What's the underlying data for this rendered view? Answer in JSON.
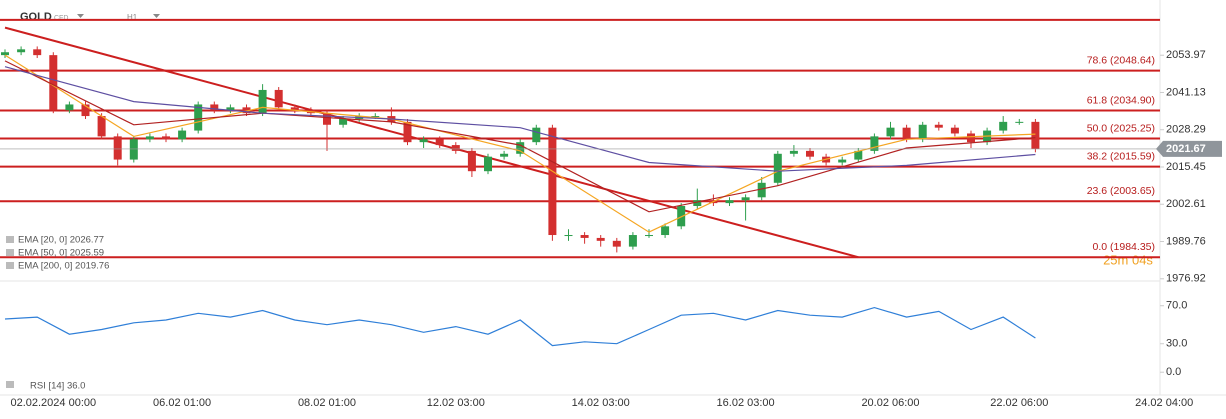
{
  "header": {
    "symbol": "GOLD",
    "kind": "CFD",
    "timeframe": "H1",
    "countdown": "25m 04s"
  },
  "chart_data": [
    {
      "type": "candlestick",
      "categories": [
        null,
        null,
        null,
        "02.02.2024  00:00",
        null,
        null,
        null,
        null,
        null,
        null,
        null,
        "06.02  01:00",
        null,
        null,
        null,
        null,
        null,
        null,
        null,
        null,
        "08.02  01:00",
        null,
        null,
        null,
        null,
        null,
        null,
        null,
        "12.02  03:00",
        null,
        null,
        null,
        null,
        null,
        null,
        null,
        null,
        "14.02  03:00",
        null,
        null,
        null,
        null,
        null,
        null,
        null,
        null,
        "16.02  03:00",
        null,
        null,
        null,
        null,
        null,
        null,
        null,
        null,
        "20.02  06:00",
        null,
        null,
        null,
        null,
        null,
        null,
        null,
        "22.02  06:00",
        null,
        null,
        null,
        null,
        null,
        null,
        null,
        null,
        "24.02  04:00"
      ],
      "open": [
        2054,
        2055,
        2056,
        2054,
        2035,
        2037,
        2033,
        2026,
        2018,
        2025,
        2026,
        2025,
        2028,
        2037,
        2035,
        2036,
        2034,
        2042,
        2036,
        2035,
        2034,
        2030,
        2032,
        2033,
        2033,
        2031,
        2024,
        2025,
        2023,
        2021,
        2014,
        2019,
        2020,
        2024,
        2029,
        1992,
        1992,
        1991,
        1990,
        1988,
        1992,
        1992,
        1995,
        2002,
        2004,
        2003,
        2004,
        2005,
        2010,
        2020,
        2021,
        2019,
        2017,
        2018,
        2021,
        2026,
        2029,
        2025,
        2030,
        2029,
        2027,
        2024,
        2028,
        2031,
        2031,
        null,
        null,
        null,
        null,
        null,
        null,
        null,
        null
      ],
      "high": [
        2056,
        2057,
        2057,
        2055,
        2038,
        2038,
        2034,
        2027,
        2026,
        2027,
        2027,
        2029,
        2038,
        2038,
        2037,
        2037,
        2044,
        2043,
        2037,
        2036,
        2035,
        2033,
        2034,
        2034,
        2036,
        2032,
        2026,
        2026,
        2024,
        2022,
        2020,
        2021,
        2025,
        2030,
        2030,
        1994,
        1993,
        1992,
        1991,
        1993,
        1994,
        1996,
        2003,
        2008,
        2006,
        2005,
        2006,
        2012,
        2021,
        2023,
        2022,
        2020,
        2019,
        2022,
        2027,
        2031,
        2030,
        2031,
        2031,
        2030,
        2028,
        2029,
        2033,
        2032,
        2032,
        null,
        null,
        null,
        null,
        null,
        null,
        null,
        null
      ],
      "low": [
        2053,
        2054,
        2053,
        2034,
        2034,
        2032,
        2025,
        2016,
        2017,
        2024,
        2024,
        2024,
        2027,
        2034,
        2034,
        2033,
        2033,
        2035,
        2034,
        2033,
        2021,
        2029,
        2031,
        2032,
        2030,
        2023,
        2022,
        2022,
        2020,
        2012,
        2013,
        2018,
        2019,
        2023,
        1990,
        1990,
        1989,
        1988,
        1986,
        1987,
        1991,
        1991,
        1994,
        2001,
        2002,
        2002,
        1997,
        2004,
        2009,
        2019,
        2018,
        2016,
        2016,
        2017,
        2020,
        2025,
        2024,
        2024,
        2028,
        2026,
        2022,
        2023,
        2027,
        2030,
        2020.5,
        null,
        null,
        null,
        null,
        null,
        null,
        null,
        null
      ],
      "close": [
        2055,
        2056,
        2054,
        2035,
        2037,
        2033,
        2026,
        2018,
        2025,
        2026,
        2025,
        2028,
        2037,
        2035,
        2036,
        2034,
        2042,
        2036,
        2035,
        2034,
        2030,
        2032,
        2033,
        2033,
        2031,
        2024,
        2025,
        2023,
        2021,
        2014,
        2019,
        2020,
        2024,
        2029,
        1992,
        1992,
        1991,
        1990,
        1988,
        1992,
        1992,
        1995,
        2002,
        2004,
        2003,
        2004,
        2005,
        2010,
        2020,
        2021,
        2019,
        2017,
        2018,
        2021,
        2026,
        2029,
        2025,
        2030,
        2029,
        2027,
        2024,
        2028,
        2031,
        2031,
        2021.67,
        null,
        null,
        null,
        null,
        null,
        null,
        null,
        null
      ],
      "up_color": "#2e9e4d",
      "down_color": "#d32f2f",
      "ylim": [
        1976.5,
        2073
      ],
      "yticks": [
        2053.97,
        2041.13,
        2028.29,
        2015.45,
        2002.61,
        1989.76,
        1976.92
      ],
      "last_price": 2021.67,
      "lines": [
        {
          "name": "EMA [20, 0]",
          "legend": "EMA [20, 0] 2026.77",
          "color": "#f5a623",
          "x": [
            0,
            8,
            16,
            24,
            32,
            40,
            48,
            56,
            64
          ],
          "values": [
            2054,
            2026,
            2036,
            2032,
            2021,
            1993,
            2014,
            2025,
            2026.77
          ]
        },
        {
          "name": "EMA [50, 0]",
          "legend": "EMA [50, 0] 2025.59",
          "color": "#b22222",
          "x": [
            0,
            8,
            16,
            24,
            32,
            40,
            48,
            56,
            64
          ],
          "values": [
            2052,
            2030,
            2034,
            2031,
            2023,
            2000,
            2009,
            2022,
            2025.59
          ]
        },
        {
          "name": "EMA [200, 0]",
          "legend": "EMA [200, 0] 2019.76",
          "color": "#5e4fa2",
          "x": [
            0,
            8,
            16,
            24,
            32,
            40,
            48,
            56,
            64
          ],
          "values": [
            2050,
            2038,
            2034,
            2032,
            2029,
            2017,
            2014,
            2016,
            2019.76
          ]
        }
      ],
      "trendline": {
        "color": "#cc1f1f",
        "x": [
          0,
          53
        ],
        "values": [
          2063.5,
          1984.35
        ]
      },
      "levels": [
        {
          "value": 2066.15
        },
        {
          "value": 2048.64,
          "label": "78.6 (2048.64)"
        },
        {
          "value": 2034.9,
          "label": "61.8 (2034.90)"
        },
        {
          "value": 2025.25,
          "label": "50.0 (2025.25)"
        },
        {
          "value": 2015.59,
          "label": "38.2 (2015.59)"
        },
        {
          "value": 2003.65,
          "label": "23.6 (2003.65)"
        },
        {
          "value": 1984.35,
          "label": "0.0 (1984.35)"
        }
      ],
      "level_color": "#cc1f1f"
    },
    {
      "type": "line",
      "name": "RSI [14]",
      "legend": "RSI [14] 36.0",
      "color": "#2f7fd8",
      "x": [
        0,
        2,
        4,
        6,
        8,
        10,
        12,
        14,
        16,
        18,
        20,
        22,
        24,
        26,
        28,
        30,
        32,
        34,
        36,
        38,
        40,
        42,
        44,
        46,
        48,
        50,
        52,
        54,
        56,
        58,
        60,
        62,
        64
      ],
      "values": [
        56,
        58,
        40,
        45,
        52,
        55,
        62,
        58,
        65,
        55,
        50,
        55,
        50,
        42,
        48,
        40,
        55,
        28,
        32,
        30,
        45,
        60,
        62,
        55,
        65,
        60,
        58,
        68,
        58,
        64,
        45,
        58,
        36
      ],
      "ylim": [
        -24,
        95
      ],
      "yticks": [
        {
          "value": 70,
          "label": "70.0"
        },
        {
          "value": 30,
          "label": "30.0"
        },
        {
          "value": 0,
          "label": "0.0"
        }
      ]
    }
  ]
}
